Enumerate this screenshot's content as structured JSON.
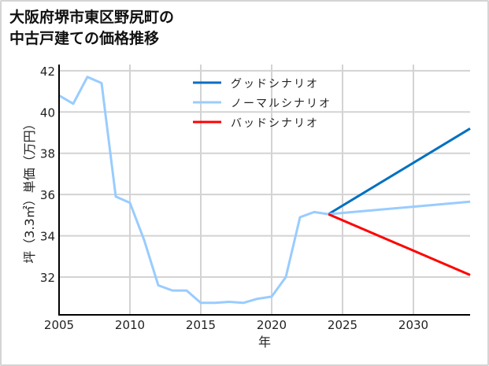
{
  "title_lines": [
    "大阪府堺市東区野尻町の",
    "中古戸建ての価格推移"
  ],
  "chart_data": {
    "type": "line",
    "title": "大阪府堺市東区野尻町の中古戸建ての価格推移",
    "xlabel": "年",
    "ylabel": "坪（3.3㎡）単価（万円）",
    "xlim": [
      2005,
      2034
    ],
    "ylim": [
      30.17,
      42.3
    ],
    "x_ticks": [
      2005,
      2010,
      2015,
      2020,
      2025,
      2030
    ],
    "y_ticks": [
      32,
      34,
      36,
      38,
      40,
      42
    ],
    "grid": true,
    "legend_position": "upper center",
    "historical": {
      "name": "ノーマルシナリオ",
      "color": "#99ccff",
      "x": [
        2005,
        2006,
        2007,
        2008,
        2009,
        2010,
        2011,
        2012,
        2013,
        2014,
        2015,
        2016,
        2017,
        2018,
        2019,
        2020,
        2021,
        2022,
        2023,
        2024
      ],
      "y": [
        40.8,
        40.4,
        41.7,
        41.4,
        35.9,
        35.6,
        33.8,
        31.6,
        31.35,
        31.35,
        30.75,
        30.75,
        30.8,
        30.75,
        30.95,
        31.05,
        32.0,
        34.9,
        35.15,
        35.05
      ]
    },
    "series": [
      {
        "name": "グッドシナリオ",
        "color": "#0070c0",
        "x": [
          2024,
          2034
        ],
        "y": [
          35.05,
          39.2
        ]
      },
      {
        "name": "ノーマルシナリオ",
        "color": "#99ccff",
        "x": [
          2024,
          2034
        ],
        "y": [
          35.05,
          35.65
        ]
      },
      {
        "name": "バッドシナリオ",
        "color": "#ff0000",
        "x": [
          2024,
          2034
        ],
        "y": [
          35.05,
          32.1
        ]
      }
    ]
  },
  "legend": [
    {
      "label": "グッドシナリオ",
      "color": "#0070c0"
    },
    {
      "label": "ノーマルシナリオ",
      "color": "#99ccff"
    },
    {
      "label": "バッドシナリオ",
      "color": "#ff0000"
    }
  ],
  "axis": {
    "x_label": "年",
    "y_label": "坪（3.3㎡）単価（万円）"
  }
}
